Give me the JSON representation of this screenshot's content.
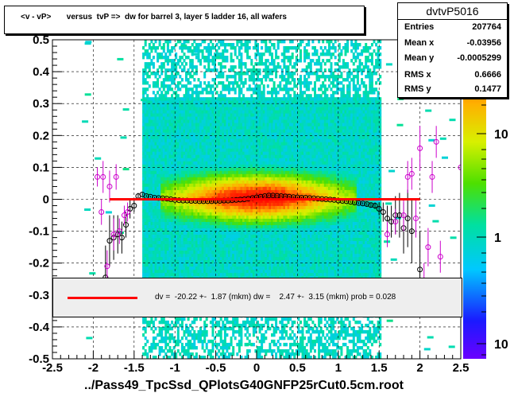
{
  "title": "<v - vP>       versus  tvP =>  dw for barrel 3, layer 5 ladder 16, all wafers",
  "stats": {
    "name": "dvtvP5016",
    "rows": [
      {
        "key": "Entries",
        "value": "207764"
      },
      {
        "key": "Mean x",
        "value": "-0.03956"
      },
      {
        "key": "Mean y",
        "value": "-0.0005299"
      },
      {
        "key": "RMS x",
        "value": "0.6666"
      },
      {
        "key": "RMS y",
        "value": "0.1477"
      }
    ]
  },
  "fit_text": "dv =  -20.22 +-  1.87 (mkm) dw =    2.47 +-  3.15 (mkm) prob = 0.028",
  "x_title": "../Pass49_TpcSsd_QPlotsG40GNFP25rCut0.5cm.root",
  "colors": {
    "fit_line": "#ff0000",
    "profile_black": "#000000",
    "profile_magenta": "#cc00cc",
    "frame_bg": "#ffffff"
  },
  "chart_data": {
    "type": "heatmap",
    "xlim": [
      -2.5,
      2.5
    ],
    "ylim": [
      -0.5,
      0.5
    ],
    "x_ticks": [
      -2.5,
      -2,
      -1.5,
      -1,
      -0.5,
      0,
      0.5,
      1,
      1.5,
      2,
      2.5
    ],
    "x_tick_labels": [
      "-2.5",
      "-2",
      "-1.5",
      "-1",
      "-0.5",
      "0",
      "0.5",
      "1",
      "1.5",
      "2",
      "2.5"
    ],
    "y_ticks": [
      -0.5,
      -0.4,
      -0.3,
      -0.2,
      -0.1,
      0,
      0.1,
      0.2,
      0.3,
      0.4,
      0.5
    ],
    "y_tick_labels": [
      "-0.5",
      "-0.4",
      "-0.3",
      "-0.2",
      "-0.1",
      "0",
      "0.1",
      "0.2",
      "0.3",
      "0.4",
      "0.5"
    ],
    "z_scale": "log",
    "z_tick_labels": [
      "10",
      "1",
      "10"
    ],
    "grid": true,
    "fit_line": {
      "x": [
        -1.8,
        2.0
      ],
      "y": [
        0.0,
        0.0
      ]
    },
    "profile_black": [
      {
        "x": -1.85,
        "y": -0.245,
        "e": 0.1
      },
      {
        "x": -1.8,
        "y": -0.13,
        "e": 0.08
      },
      {
        "x": -1.75,
        "y": -0.12,
        "e": 0.07
      },
      {
        "x": -1.7,
        "y": -0.11,
        "e": 0.06
      },
      {
        "x": -1.65,
        "y": -0.12,
        "e": 0.05
      },
      {
        "x": -1.6,
        "y": -0.08,
        "e": 0.04
      },
      {
        "x": -1.55,
        "y": -0.03,
        "e": 0.03
      },
      {
        "x": -1.5,
        "y": -0.02,
        "e": 0.02
      },
      {
        "x": -1.45,
        "y": 0.01,
        "e": 0.01
      },
      {
        "x": -1.4,
        "y": 0.015,
        "e": 0.005
      },
      {
        "x": -1.35,
        "y": 0.01,
        "e": 0.004
      },
      {
        "x": -1.3,
        "y": 0.008,
        "e": 0.003
      },
      {
        "x": -1.25,
        "y": 0.005,
        "e": 0.003
      },
      {
        "x": -1.2,
        "y": 0.004,
        "e": 0.003
      },
      {
        "x": -1.15,
        "y": 0.003,
        "e": 0.003
      },
      {
        "x": -1.1,
        "y": 0.002,
        "e": 0.003
      },
      {
        "x": -1.05,
        "y": 0.0,
        "e": 0.003
      },
      {
        "x": -1.0,
        "y": -0.002,
        "e": 0.003
      },
      {
        "x": -0.95,
        "y": -0.003,
        "e": 0.003
      },
      {
        "x": -0.9,
        "y": -0.004,
        "e": 0.003
      },
      {
        "x": -0.85,
        "y": -0.004,
        "e": 0.003
      },
      {
        "x": -0.8,
        "y": -0.005,
        "e": 0.003
      },
      {
        "x": -0.75,
        "y": -0.005,
        "e": 0.003
      },
      {
        "x": -0.7,
        "y": -0.006,
        "e": 0.003
      },
      {
        "x": -0.65,
        "y": -0.006,
        "e": 0.003
      },
      {
        "x": -0.6,
        "y": -0.006,
        "e": 0.003
      },
      {
        "x": -0.55,
        "y": -0.006,
        "e": 0.003
      },
      {
        "x": -0.5,
        "y": -0.005,
        "e": 0.003
      },
      {
        "x": -0.45,
        "y": -0.005,
        "e": 0.003
      },
      {
        "x": -0.4,
        "y": -0.004,
        "e": 0.003
      },
      {
        "x": -0.35,
        "y": -0.004,
        "e": 0.003
      },
      {
        "x": -0.3,
        "y": -0.003,
        "e": 0.003
      },
      {
        "x": -0.25,
        "y": -0.002,
        "e": 0.003
      },
      {
        "x": -0.2,
        "y": -0.001,
        "e": 0.003
      },
      {
        "x": -0.15,
        "y": 0.0,
        "e": 0.003
      },
      {
        "x": -0.1,
        "y": 0.002,
        "e": 0.003
      },
      {
        "x": -0.05,
        "y": 0.004,
        "e": 0.003
      },
      {
        "x": 0.0,
        "y": 0.006,
        "e": 0.003
      },
      {
        "x": 0.05,
        "y": 0.008,
        "e": 0.003
      },
      {
        "x": 0.1,
        "y": 0.01,
        "e": 0.003
      },
      {
        "x": 0.15,
        "y": 0.012,
        "e": 0.003
      },
      {
        "x": 0.2,
        "y": 0.012,
        "e": 0.003
      },
      {
        "x": 0.25,
        "y": 0.011,
        "e": 0.003
      },
      {
        "x": 0.3,
        "y": 0.01,
        "e": 0.003
      },
      {
        "x": 0.35,
        "y": 0.009,
        "e": 0.003
      },
      {
        "x": 0.4,
        "y": 0.008,
        "e": 0.003
      },
      {
        "x": 0.45,
        "y": 0.007,
        "e": 0.003
      },
      {
        "x": 0.5,
        "y": 0.006,
        "e": 0.003
      },
      {
        "x": 0.55,
        "y": 0.005,
        "e": 0.003
      },
      {
        "x": 0.6,
        "y": 0.005,
        "e": 0.003
      },
      {
        "x": 0.65,
        "y": 0.004,
        "e": 0.003
      },
      {
        "x": 0.7,
        "y": 0.003,
        "e": 0.003
      },
      {
        "x": 0.75,
        "y": 0.002,
        "e": 0.003
      },
      {
        "x": 0.8,
        "y": 0.001,
        "e": 0.003
      },
      {
        "x": 0.85,
        "y": 0.0,
        "e": 0.003
      },
      {
        "x": 0.9,
        "y": -0.001,
        "e": 0.003
      },
      {
        "x": 0.95,
        "y": -0.002,
        "e": 0.003
      },
      {
        "x": 1.0,
        "y": -0.004,
        "e": 0.003
      },
      {
        "x": 1.05,
        "y": -0.005,
        "e": 0.003
      },
      {
        "x": 1.1,
        "y": -0.006,
        "e": 0.003
      },
      {
        "x": 1.15,
        "y": -0.008,
        "e": 0.003
      },
      {
        "x": 1.2,
        "y": -0.01,
        "e": 0.003
      },
      {
        "x": 1.25,
        "y": -0.012,
        "e": 0.004
      },
      {
        "x": 1.3,
        "y": -0.013,
        "e": 0.004
      },
      {
        "x": 1.35,
        "y": -0.015,
        "e": 0.005
      },
      {
        "x": 1.4,
        "y": -0.018,
        "e": 0.006
      },
      {
        "x": 1.45,
        "y": -0.02,
        "e": 0.01
      },
      {
        "x": 1.5,
        "y": -0.03,
        "e": 0.02
      },
      {
        "x": 1.55,
        "y": -0.04,
        "e": 0.03
      },
      {
        "x": 1.6,
        "y": -0.06,
        "e": 0.04
      },
      {
        "x": 1.65,
        "y": -0.07,
        "e": 0.05
      },
      {
        "x": 1.7,
        "y": -0.05,
        "e": 0.06
      },
      {
        "x": 1.75,
        "y": -0.05,
        "e": 0.07
      },
      {
        "x": 1.8,
        "y": -0.09,
        "e": 0.08
      },
      {
        "x": 1.85,
        "y": -0.06,
        "e": 0.09
      },
      {
        "x": 1.9,
        "y": -0.1,
        "e": 0.1
      },
      {
        "x": 2.0,
        "y": -0.22,
        "e": 0.12
      }
    ],
    "profile_magenta": [
      {
        "x": -1.95,
        "y": 0.07,
        "e": 0.03
      },
      {
        "x": -1.9,
        "y": -0.04,
        "e": 0.04
      },
      {
        "x": -1.88,
        "y": 0.07,
        "e": 0.05
      },
      {
        "x": -1.83,
        "y": -0.21,
        "e": 0.05
      },
      {
        "x": -1.8,
        "y": 0.04,
        "e": 0.05
      },
      {
        "x": -1.75,
        "y": -0.11,
        "e": 0.05
      },
      {
        "x": -1.72,
        "y": 0.07,
        "e": 0.04
      },
      {
        "x": -1.68,
        "y": -0.1,
        "e": 0.04
      },
      {
        "x": -1.62,
        "y": -0.05,
        "e": 0.03
      },
      {
        "x": -1.58,
        "y": -0.04,
        "e": 0.03
      },
      {
        "x": 1.6,
        "y": -0.11,
        "e": 0.04
      },
      {
        "x": 1.7,
        "y": -0.07,
        "e": 0.04
      },
      {
        "x": 1.8,
        "y": -0.05,
        "e": 0.05
      },
      {
        "x": 1.85,
        "y": 0.07,
        "e": 0.05
      },
      {
        "x": 1.9,
        "y": 0.08,
        "e": 0.05
      },
      {
        "x": 1.95,
        "y": -0.06,
        "e": 0.06
      },
      {
        "x": 2.0,
        "y": 0.16,
        "e": 0.07
      },
      {
        "x": 2.05,
        "y": -0.26,
        "e": 0.06
      },
      {
        "x": 2.1,
        "y": -0.15,
        "e": 0.06
      },
      {
        "x": 2.15,
        "y": 0.07,
        "e": 0.05
      },
      {
        "x": 2.2,
        "y": 0.18,
        "e": 0.05
      },
      {
        "x": 2.25,
        "y": -0.18,
        "e": 0.05
      },
      {
        "x": 2.5,
        "y": 0.1,
        "e": 0.05
      }
    ]
  }
}
